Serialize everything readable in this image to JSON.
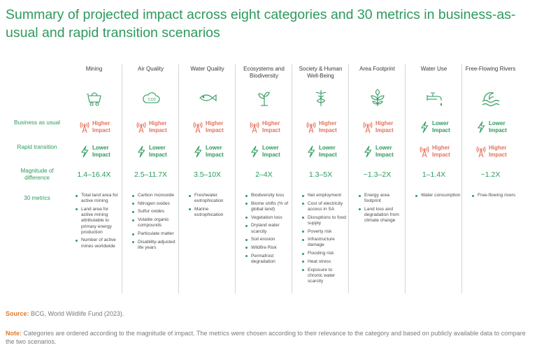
{
  "title": "Summary of projected impact across eight categories and 30 metrics in business-as-usual and rapid transition scenarios",
  "row_labels": {
    "business_as_usual": "Business as usual",
    "rapid_transition": "Rapid transition",
    "magnitude": "Magnitude of difference",
    "metrics": "30 metrics"
  },
  "impact_labels": {
    "higher": "Higher Impact",
    "lower": "Lower Impact"
  },
  "colors": {
    "green": "#2c9a5c",
    "orange": "#e3715c",
    "source_label": "#e07a2a",
    "divider": "#cfd8d2"
  },
  "categories": [
    {
      "name": "Mining",
      "icon": "mine-cart-icon",
      "bau": "higher",
      "rapid": "lower",
      "magnitude": "1.4–16.4X",
      "metrics": [
        "Total land area for active mining",
        "Land area for active mining attributable to primary energy production",
        "Number of active mines worldwide"
      ]
    },
    {
      "name": "Air Quality",
      "icon": "cloud-co2-icon",
      "bau": "higher",
      "rapid": "lower",
      "magnitude": "2.5–11.7X",
      "metrics": [
        "Carbon monoxide",
        "Nitrogen oxides",
        "Sulfur oxides",
        "Volatile organic compounds",
        "Particulate matter",
        "Disability-adjusted life years"
      ]
    },
    {
      "name": "Water Quality",
      "icon": "fish-icon",
      "bau": "higher",
      "rapid": "lower",
      "magnitude": "3.5–10X",
      "metrics": [
        "Freshwater eutrophication",
        "Marine eutrophication"
      ]
    },
    {
      "name": "Ecosystems and Biodiversity",
      "icon": "sprout-icon",
      "bau": "higher",
      "rapid": "lower",
      "magnitude": "2–4X",
      "metrics": [
        "Biodiversity loss",
        "Biome shifts (% of global land)",
        "Vegetation loss",
        "Dryland water scarcity",
        "Soil erosion",
        "Wildfire Risk",
        "Permafrost degradation"
      ]
    },
    {
      "name": "Society & Human Well-Being",
      "icon": "caduceus-icon",
      "bau": "higher",
      "rapid": "lower",
      "magnitude": "1.3–5X",
      "metrics": [
        "Net employment",
        "Cost of electricity access in SA",
        "Disruptions to food supply",
        "Poverty risk",
        "Infrastructure damage",
        "Flooding risk",
        "Heat stress",
        "Exposure to chronic water scarcity"
      ]
    },
    {
      "name": "Area Footprint",
      "icon": "leaf-plant-icon",
      "bau": "higher",
      "rapid": "lower",
      "magnitude": "~1.3–2X",
      "metrics": [
        "Energy area footprint",
        "Land loss and degradation from climate change"
      ]
    },
    {
      "name": "Water Use",
      "icon": "faucet-icon",
      "bau": "lower",
      "rapid": "higher",
      "magnitude": "1–1.4X",
      "metrics": [
        "Water consumption"
      ]
    },
    {
      "name": "Free-Flowing Rivers",
      "icon": "wave-icon",
      "bau": "lower",
      "rapid": "higher",
      "magnitude": "~1.2X",
      "metrics": [
        "Free-flowing rivers"
      ]
    }
  ],
  "source": {
    "label": "Source:",
    "text": "BCG, World Wildlife Fund (2023)."
  },
  "note": {
    "label": "Note:",
    "text": "Categories are ordered according to the magnitude of impact. The metrics were chosen according to their relevance to the category and based on publicly available data to compare the two scenarios."
  }
}
